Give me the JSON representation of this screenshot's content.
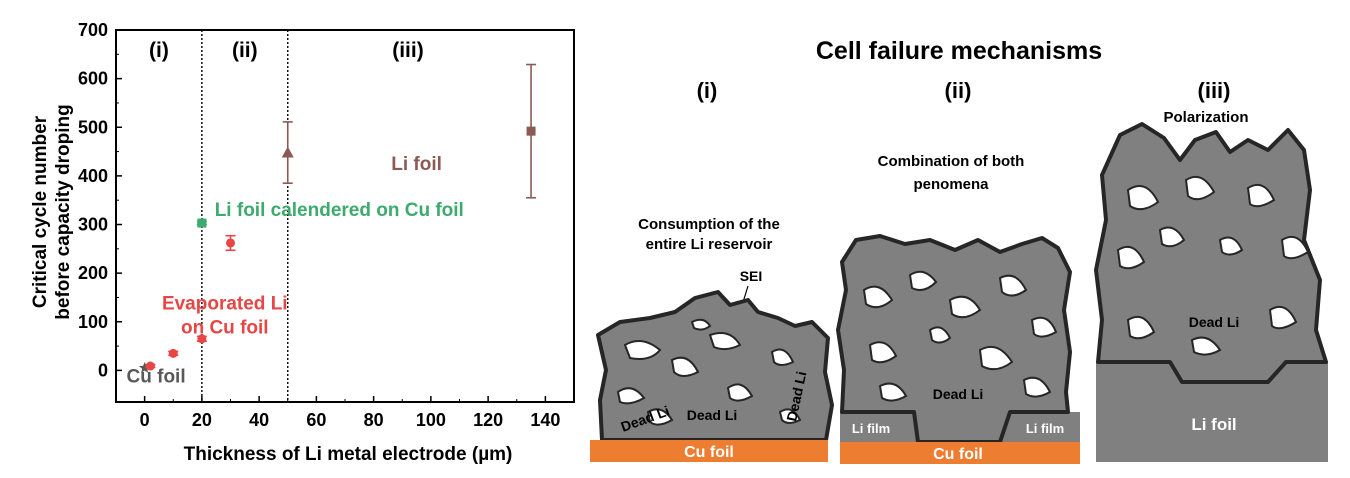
{
  "chart_data": {
    "type": "scatter",
    "xlabel": "Thickness of Li metal electrode (µm)",
    "ylabel_line1": "Critical cycle number",
    "ylabel_line2": "before capacity droping",
    "xlim": [
      -10,
      150
    ],
    "ylim": [
      -65,
      700
    ],
    "xticks": [
      0,
      20,
      40,
      60,
      80,
      100,
      120,
      140
    ],
    "yticks": [
      0,
      100,
      200,
      300,
      400,
      500,
      600,
      700
    ],
    "region_lines_x": [
      20,
      50
    ],
    "regions": [
      {
        "label": "(i)",
        "x": 5
      },
      {
        "label": "(ii)",
        "x": 35
      },
      {
        "label": "(iii)",
        "x": 92
      }
    ],
    "series": [
      {
        "name": "Cu foil",
        "color": "#595959",
        "marker": "star",
        "label_x": 4,
        "label_y": -25,
        "points": [
          {
            "x": 0,
            "y": 5,
            "err": 0
          }
        ]
      },
      {
        "name": "Evaporated Li\non Cu foil",
        "color": "#e84545",
        "marker": "circle",
        "label_x": 28,
        "label_y": 125,
        "points": [
          {
            "x": 2,
            "y": 9,
            "err": 3
          },
          {
            "x": 10,
            "y": 35,
            "err": 4
          },
          {
            "x": 20,
            "y": 65,
            "err": 5
          },
          {
            "x": 30,
            "y": 262,
            "err": 15
          }
        ]
      },
      {
        "name": "Li foil calendered on Cu foil",
        "color": "#3daa6e",
        "marker": "square",
        "label_x": 68,
        "label_y": 318,
        "points": [
          {
            "x": 20,
            "y": 303,
            "err": 3
          }
        ]
      },
      {
        "name": "Li foil",
        "color": "#8b5a52",
        "marker": "triangle",
        "label_x": 95,
        "label_y": 412,
        "points": [
          {
            "x": 50,
            "y": 448,
            "err": 63
          }
        ]
      },
      {
        "name": "",
        "color": "#8b5a52",
        "marker": "square",
        "label_x": null,
        "label_y": null,
        "points": [
          {
            "x": 135,
            "y": 492,
            "err": 137
          }
        ]
      }
    ]
  },
  "diagram": {
    "title": "Cell failure mechanisms",
    "panels": [
      {
        "label": "(i)",
        "caption_line1": "Consumption of the",
        "caption_line2": "entire Li reservoir",
        "sei": "SEI",
        "dead_li": [
          "Dead Li",
          "Dead Li",
          "Dead Li"
        ],
        "base": "Cu foil"
      },
      {
        "label": "(ii)",
        "caption_line1": "Combination of both",
        "caption_line2": "penomena",
        "dead_li": [
          "Dead Li"
        ],
        "film_left": "Li film",
        "film_right": "Li film",
        "base": "Cu foil"
      },
      {
        "label": "(iii)",
        "caption": "Polarization",
        "dead_li": [
          "Dead Li"
        ],
        "base": "Li foil"
      }
    ],
    "colors": {
      "copper": "#ed7d31",
      "lithium": "#808080",
      "outline": "#262626"
    }
  }
}
